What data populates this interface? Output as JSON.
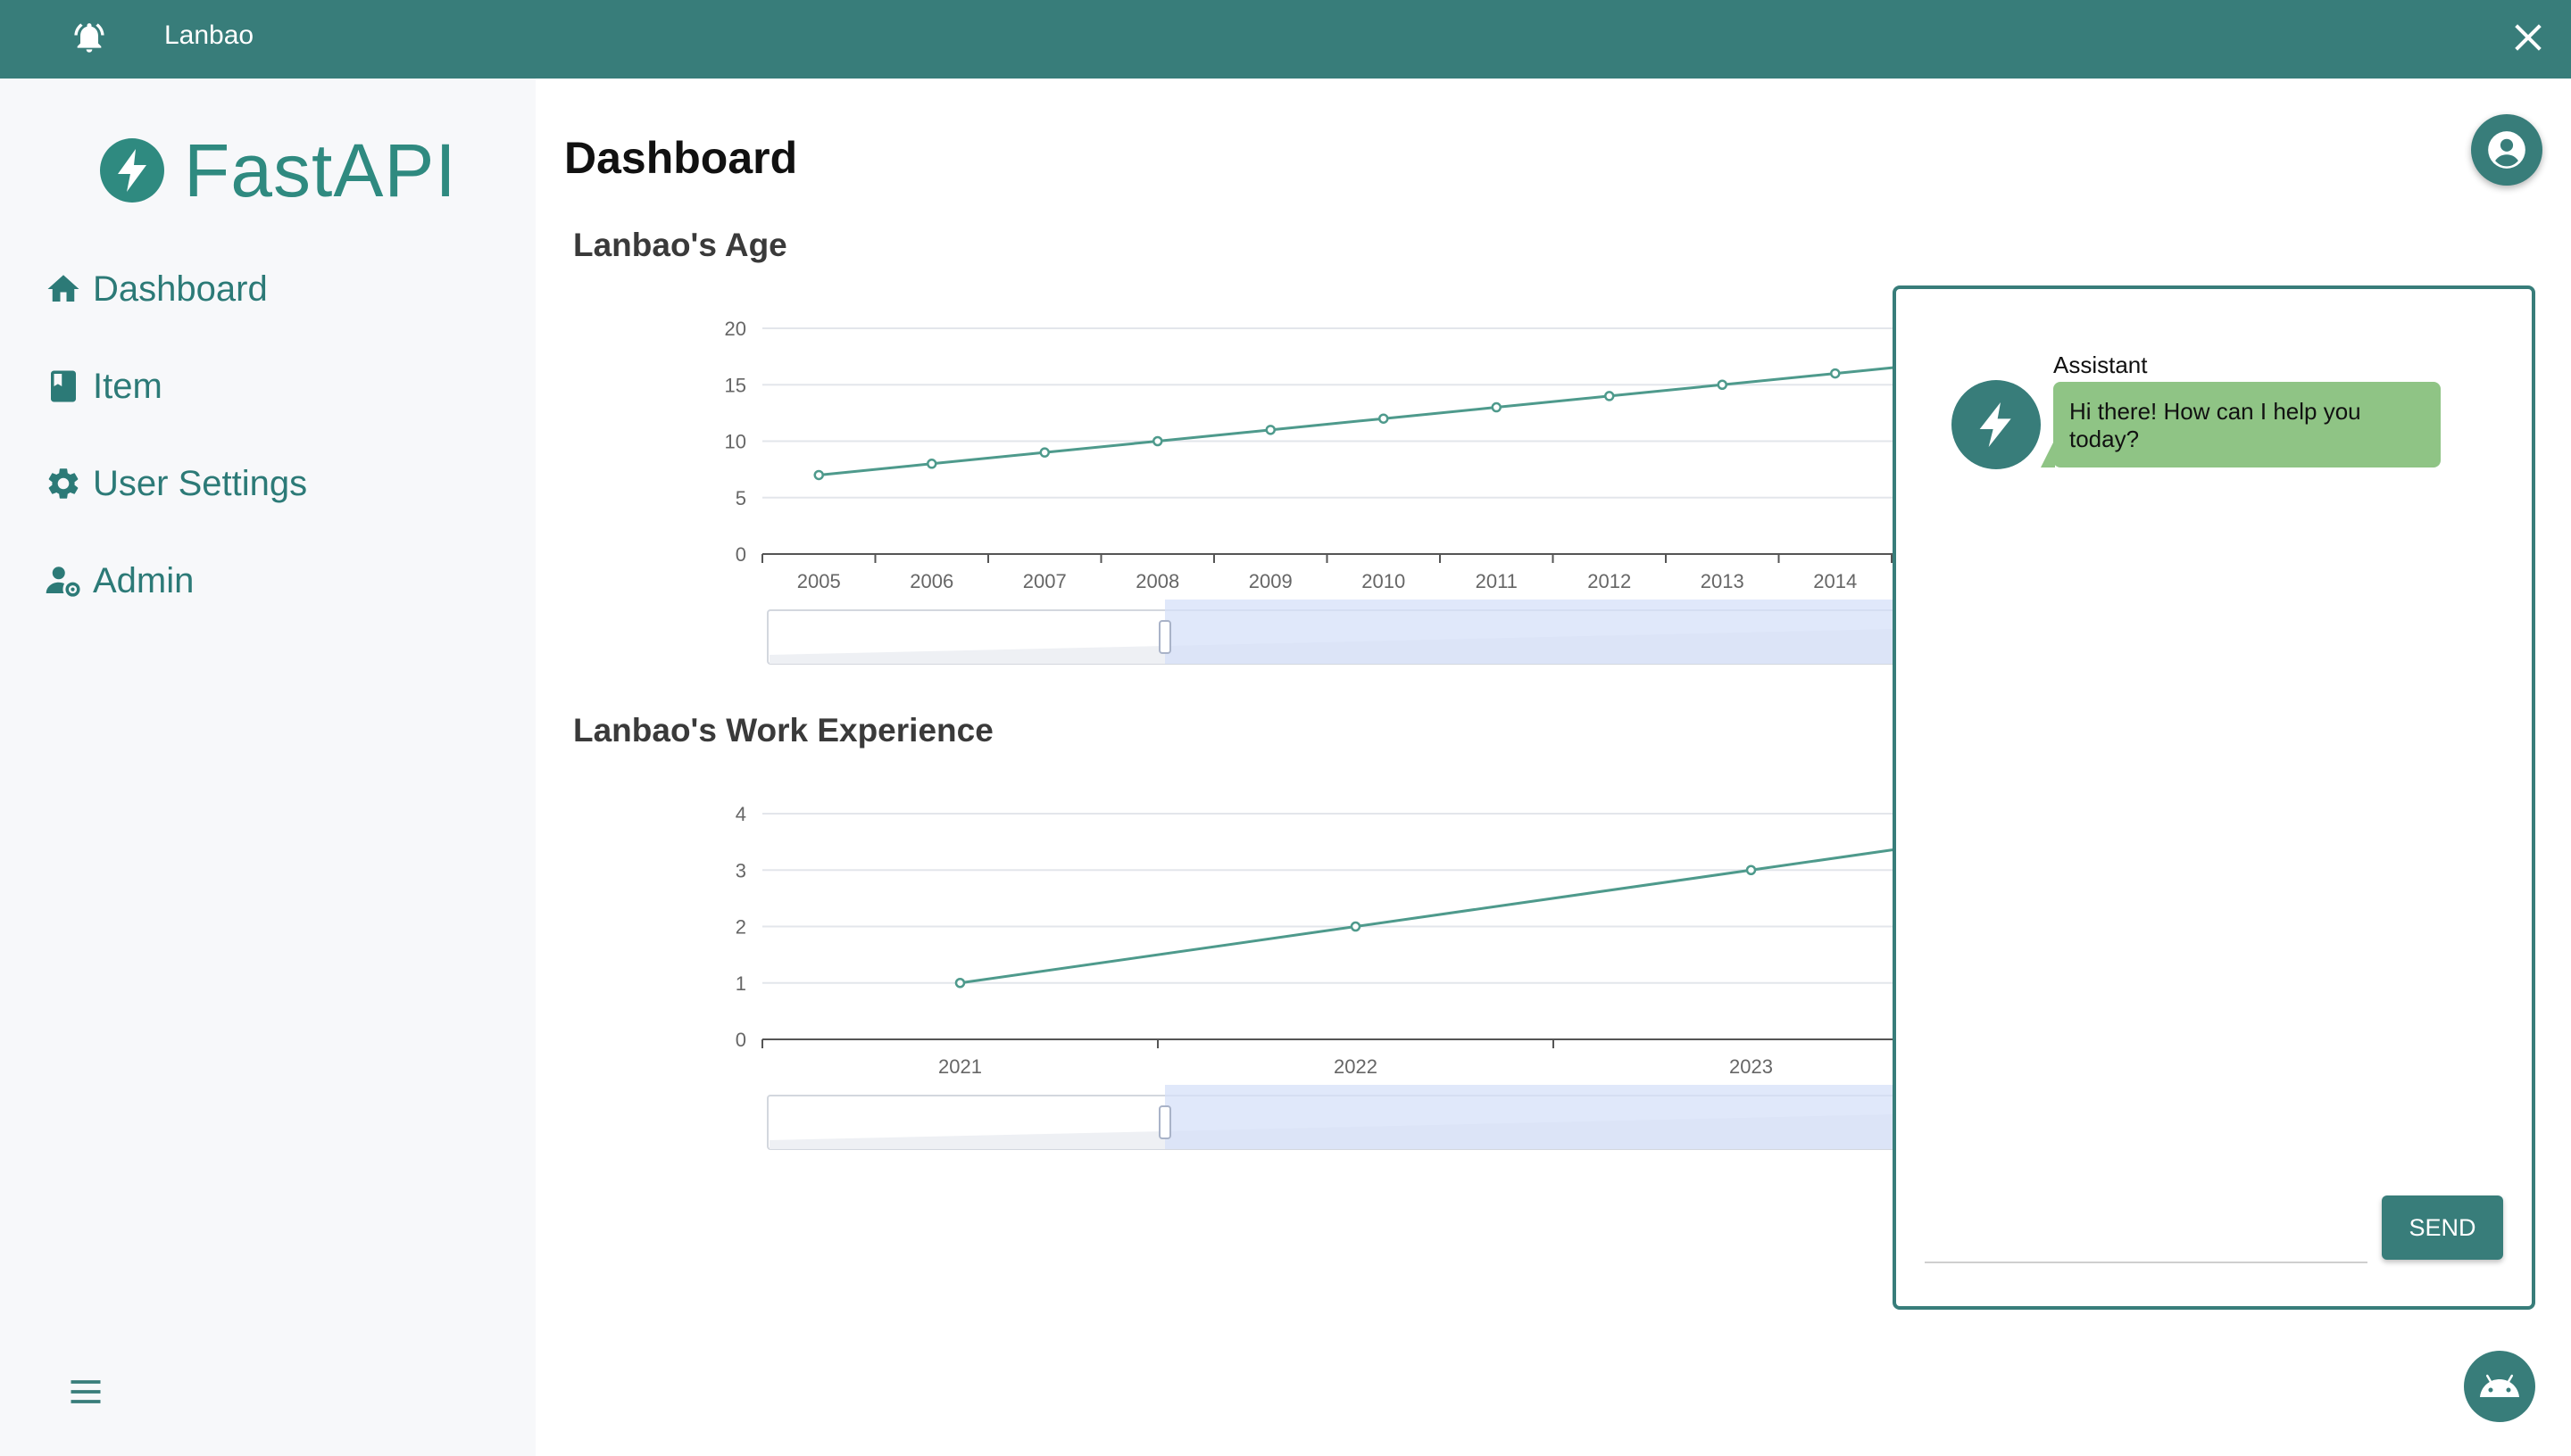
{
  "topbar": {
    "title": "Lanbao"
  },
  "sidebar": {
    "logo_text": "FastAPI",
    "items": [
      {
        "label": "Dashboard",
        "icon": "home-icon"
      },
      {
        "label": "Item",
        "icon": "book-icon"
      },
      {
        "label": "User Settings",
        "icon": "gear-icon"
      },
      {
        "label": "Admin",
        "icon": "admin-icon"
      }
    ]
  },
  "main": {
    "title": "Dashboard"
  },
  "colors": {
    "accent": "#387d7a",
    "line": "#4e9a8c",
    "bubble": "#8fc485",
    "zoom": "#d6e0f8"
  },
  "chart_data": [
    {
      "type": "line",
      "title": "Lanbao's Age",
      "x": [
        "2005",
        "2006",
        "2007",
        "2008",
        "2009",
        "2010",
        "2011",
        "2012",
        "2013",
        "2014"
      ],
      "values": [
        7,
        8,
        9,
        10,
        11,
        12,
        13,
        14,
        15,
        16
      ],
      "yticks": [
        "0",
        "5",
        "10",
        "15",
        "20"
      ],
      "ylim": [
        0,
        20
      ],
      "grid": true
    },
    {
      "type": "line",
      "title": "Lanbao's Work Experience",
      "x": [
        "2021",
        "2022",
        "2023"
      ],
      "values": [
        1,
        2,
        3
      ],
      "yticks": [
        "0",
        "1",
        "2",
        "3",
        "4"
      ],
      "ylim": [
        0,
        4
      ],
      "grid": true
    }
  ],
  "chat": {
    "sender": "Assistant",
    "message": "Hi there! How can I help you today?",
    "send_label": "SEND",
    "input_value": ""
  }
}
